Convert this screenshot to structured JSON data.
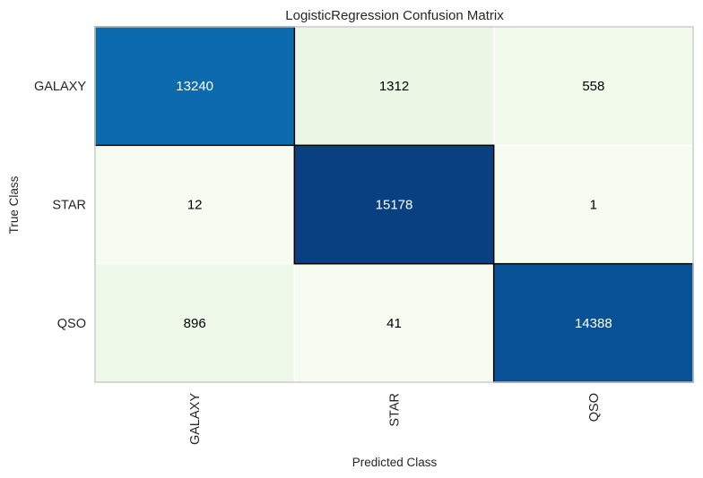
{
  "chart_data": {
    "type": "heatmap",
    "title": "LogisticRegression Confusion Matrix",
    "xlabel": "Predicted Class",
    "ylabel": "True Class",
    "x_categories": [
      "GALAXY",
      "STAR",
      "QSO"
    ],
    "y_categories": [
      "GALAXY",
      "STAR",
      "QSO"
    ],
    "values": [
      [
        13240,
        1312,
        558
      ],
      [
        12,
        15178,
        1
      ],
      [
        896,
        41,
        14388
      ]
    ],
    "colors": {
      "low": "#f7fcf0",
      "high": "#084081",
      "dark_text": "#000000",
      "light_text": "#ffffff"
    },
    "diagonal_outlined": true
  }
}
